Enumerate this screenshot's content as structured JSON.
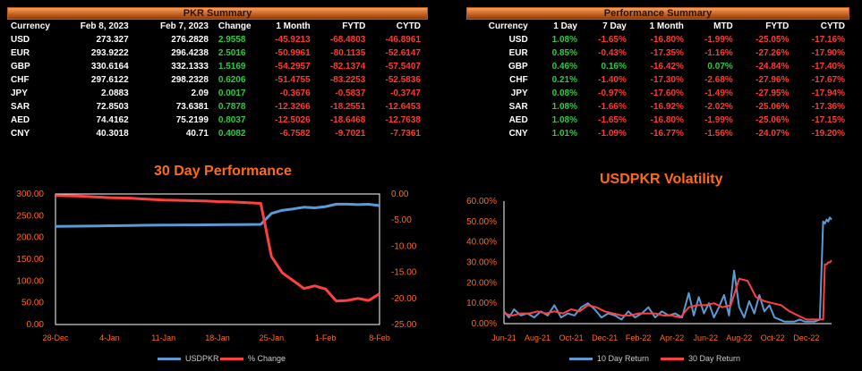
{
  "pkr_summary": {
    "title": "PKR Summary",
    "headers": [
      "Currency",
      "Feb 8, 2023",
      "Feb 7, 2023",
      "Change",
      "1 Month",
      "FYTD",
      "CYTD"
    ],
    "rows": [
      [
        "USD",
        "273.327",
        "276.2828",
        "2.9558",
        "-45.9213",
        "-68.4803",
        "-46.8961"
      ],
      [
        "EUR",
        "293.9222",
        "296.4238",
        "2.5016",
        "-50.9961",
        "-80.1135",
        "-52.6147"
      ],
      [
        "GBP",
        "330.6164",
        "332.1333",
        "1.5169",
        "-54.2957",
        "-82.1374",
        "-57.5407"
      ],
      [
        "CHF",
        "297.6122",
        "298.2328",
        "0.6206",
        "-51.4755",
        "-83.2253",
        "-52.5836"
      ],
      [
        "JPY",
        "2.0883",
        "2.09",
        "0.0017",
        "-0.3676",
        "-0.5837",
        "-0.3747"
      ],
      [
        "SAR",
        "72.8503",
        "73.6381",
        "0.7878",
        "-12.3266",
        "-18.2551",
        "-12.6453"
      ],
      [
        "AED",
        "74.4162",
        "75.2199",
        "0.8037",
        "-12.5026",
        "-18.6468",
        "-12.7638"
      ],
      [
        "CNY",
        "40.3018",
        "40.71",
        "0.4082",
        "-6.7582",
        "-9.7021",
        "-7.7361"
      ]
    ]
  },
  "performance_summary": {
    "title": "Performance Summary",
    "headers": [
      "Currency",
      "1 Day",
      "7 Day",
      "1 Month",
      "MTD",
      "FYTD",
      "CYTD"
    ],
    "rows": [
      [
        "USD",
        "1.08%",
        "-1.65%",
        "-16.80%",
        "-1.99%",
        "-25.05%",
        "-17.16%"
      ],
      [
        "EUR",
        "0.85%",
        "-0.43%",
        "-17.35%",
        "-1.16%",
        "-27.26%",
        "-17.90%"
      ],
      [
        "GBP",
        "0.46%",
        "0.16%",
        "-16.42%",
        "0.07%",
        "-24.84%",
        "-17.40%"
      ],
      [
        "CHF",
        "0.21%",
        "-1.40%",
        "-17.30%",
        "-2.68%",
        "-27.96%",
        "-17.67%"
      ],
      [
        "JPY",
        "0.08%",
        "-0.97%",
        "-17.60%",
        "-1.49%",
        "-27.95%",
        "-17.94%"
      ],
      [
        "SAR",
        "1.08%",
        "-1.66%",
        "-16.92%",
        "-2.02%",
        "-25.06%",
        "-17.36%"
      ],
      [
        "AED",
        "1.08%",
        "-1.65%",
        "-16.80%",
        "-1.99%",
        "-25.06%",
        "-17.15%"
      ],
      [
        "CNY",
        "1.01%",
        "-1.09%",
        "-16.77%",
        "-1.56%",
        "-24.07%",
        "-19.20%"
      ]
    ]
  },
  "colors": {
    "positive": "#2ecc40",
    "negative": "#ff3b30",
    "accent": "#ff6a1a",
    "blue_series": "#5b9bd5",
    "red_series": "#ff4040"
  },
  "chart_data": [
    {
      "type": "line",
      "title": "30 Day Performance",
      "x": [
        "28-Dec",
        "29-Dec",
        "30-Dec",
        "2-Jan",
        "3-Jan",
        "4-Jan",
        "5-Jan",
        "6-Jan",
        "9-Jan",
        "10-Jan",
        "11-Jan",
        "12-Jan",
        "13-Jan",
        "16-Jan",
        "17-Jan",
        "18-Jan",
        "19-Jan",
        "20-Jan",
        "23-Jan",
        "24-Jan",
        "25-Jan",
        "26-Jan",
        "27-Jan",
        "30-Jan",
        "31-Jan",
        "1-Feb",
        "2-Feb",
        "3-Feb",
        "6-Feb",
        "7-Feb",
        "8-Feb"
      ],
      "x_tick_labels": [
        "28-Dec",
        "4-Jan",
        "11-Jan",
        "18-Jan",
        "25-Jan",
        "1-Feb",
        "8-Feb"
      ],
      "series": [
        {
          "name": "USDPKR",
          "axis": "left",
          "values": [
            225.6,
            225.8,
            226.0,
            226.3,
            226.7,
            227.1,
            227.3,
            227.6,
            228.0,
            228.3,
            228.6,
            228.8,
            228.9,
            229.0,
            229.1,
            229.3,
            229.5,
            229.7,
            229.9,
            230.1,
            255.4,
            262.6,
            265.6,
            269.6,
            268.1,
            271.0,
            276.6,
            276.6,
            275.5,
            276.3,
            273.3
          ]
        },
        {
          "name": "% Change",
          "axis": "right",
          "values": [
            -0.3,
            -0.35,
            -0.4,
            -0.5,
            -0.6,
            -0.7,
            -0.75,
            -0.8,
            -0.95,
            -1.05,
            -1.15,
            -1.2,
            -1.25,
            -1.3,
            -1.35,
            -1.45,
            -1.5,
            -1.6,
            -1.7,
            -1.8,
            -12.0,
            -15.1,
            -16.6,
            -18.1,
            -17.6,
            -18.2,
            -20.5,
            -20.4,
            -20.0,
            -20.4,
            -19.1
          ]
        }
      ],
      "y_left_ticks": [
        "0.00",
        "50.00",
        "100.00",
        "150.00",
        "200.00",
        "250.00",
        "300.00"
      ],
      "y_left_range": [
        0,
        300
      ],
      "y_right_ticks": [
        "0.00",
        "-5.00",
        "-10.00",
        "-15.00",
        "-20.00",
        "-25.00"
      ],
      "y_right_range": [
        -25,
        0
      ],
      "legend_position": "bottom"
    },
    {
      "type": "line",
      "title": "USDPKR Volatility",
      "x_tick_labels": [
        "Jun-21",
        "Aug-21",
        "Oct-21",
        "Dec-21",
        "Feb-22",
        "Apr-22",
        "Jun-22",
        "Aug-22",
        "Oct-22",
        "Dec-22"
      ],
      "x_range": [
        0,
        19.5
      ],
      "y_ticks": [
        "0.00%",
        "10.00%",
        "20.00%",
        "30.00%",
        "40.00%",
        "50.00%",
        "60.00%"
      ],
      "y_range": [
        0,
        60
      ],
      "series": [
        {
          "name": "10 Day Return",
          "x": [
            0,
            0.3,
            0.6,
            1.0,
            1.4,
            1.8,
            2.2,
            2.6,
            3.0,
            3.4,
            3.8,
            4.2,
            4.6,
            5.0,
            5.4,
            5.8,
            6.2,
            6.6,
            7.0,
            7.4,
            7.8,
            8.2,
            8.6,
            9.0,
            9.4,
            9.8,
            10.2,
            10.6,
            11.0,
            11.3,
            11.6,
            11.9,
            12.2,
            12.5,
            12.8,
            13.1,
            13.4,
            13.7,
            14.0,
            14.3,
            14.6,
            14.9,
            15.2,
            15.5,
            15.8,
            16.1,
            16.4,
            16.7,
            17.0,
            17.3,
            17.6,
            17.9,
            18.2,
            18.5,
            18.8,
            19.0,
            19.1,
            19.2,
            19.3,
            19.4,
            19.5
          ],
          "values": [
            6,
            3,
            7,
            4,
            5,
            3,
            6,
            4,
            9,
            3,
            5,
            4,
            8,
            10,
            7,
            3,
            5,
            4,
            2,
            6,
            3,
            5,
            8,
            3,
            6,
            4,
            5,
            3,
            15,
            4,
            13,
            5,
            10,
            3,
            8,
            14,
            4,
            26,
            8,
            3,
            11,
            5,
            14,
            6,
            9,
            3,
            2,
            1,
            1,
            1,
            2,
            1,
            1,
            1,
            2,
            50,
            49,
            51,
            50,
            52,
            51
          ]
        },
        {
          "name": "30 Day Return",
          "x": [
            0,
            0.5,
            1.0,
            1.5,
            2.0,
            2.5,
            3.0,
            3.5,
            4.0,
            4.5,
            5.0,
            5.5,
            6.0,
            6.5,
            7.0,
            7.5,
            8.0,
            8.5,
            9.0,
            9.5,
            10.0,
            10.5,
            11.0,
            11.5,
            12.0,
            12.5,
            13.0,
            13.5,
            14.0,
            14.5,
            15.0,
            15.5,
            16.0,
            16.5,
            17.0,
            17.5,
            18.0,
            18.5,
            18.8,
            19.0,
            19.1,
            19.2,
            19.3,
            19.4,
            19.5
          ],
          "values": [
            5,
            4,
            5,
            5,
            6,
            5,
            6,
            5,
            7,
            6,
            9,
            8,
            6,
            5,
            4,
            4,
            5,
            5,
            5,
            4,
            4,
            3,
            8,
            9,
            9,
            10,
            8,
            9,
            22,
            21,
            13,
            11,
            10,
            9,
            6,
            4,
            2,
            2,
            2,
            2,
            29,
            29,
            30,
            30,
            31
          ]
        }
      ],
      "legend_position": "bottom"
    }
  ]
}
